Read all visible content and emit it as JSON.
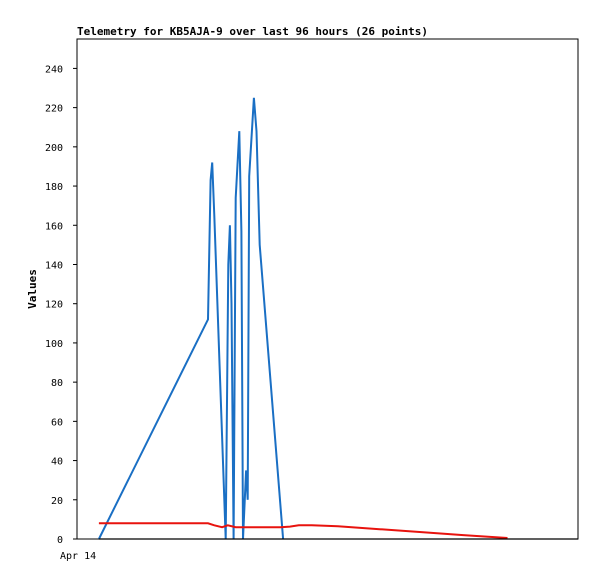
{
  "chart_data": {
    "type": "line",
    "title": "Telemetry for KB5AJA-9 over last 96 hours (26 points)",
    "xlabel": "",
    "ylabel": "Values",
    "x_tick_labels": [
      "Apr 14"
    ],
    "ylim": [
      0,
      255
    ],
    "yticks": [
      0,
      20,
      40,
      60,
      80,
      100,
      120,
      140,
      160,
      180,
      200,
      220,
      240
    ],
    "xlim": [
      0,
      96
    ],
    "grid": false,
    "legend": "none",
    "series": [
      {
        "color": "#1a6fc4",
        "x": [
          4.2,
          25.1,
          25.6,
          25.9,
          26.3,
          28.5,
          29.0,
          29.3,
          29.6,
          30.0,
          30.4,
          31.1,
          31.5,
          31.8,
          32.4,
          32.7,
          33.0,
          33.9,
          34.4,
          35.0,
          39.5
        ],
        "y": [
          0,
          112,
          183,
          192,
          165,
          0,
          140,
          160,
          120,
          0,
          174,
          208,
          157,
          0,
          35,
          20,
          185,
          225,
          208,
          150,
          0
        ]
      },
      {
        "color": "#e8130e",
        "x": [
          4.2,
          25.1,
          26.3,
          27.8,
          28.9,
          30.4,
          34.5,
          39.0,
          40.8,
          42.5,
          45.0,
          50.0,
          58.0,
          66.0,
          74.0,
          82.5
        ],
        "y": [
          8,
          8,
          7,
          6,
          7,
          6,
          6,
          6,
          6.3,
          7,
          7,
          6.5,
          5,
          3.5,
          2.0,
          0.5
        ]
      },
      {
        "color": "#000000",
        "x": [
          4.2,
          96
        ],
        "y": [
          0,
          0
        ]
      }
    ]
  }
}
